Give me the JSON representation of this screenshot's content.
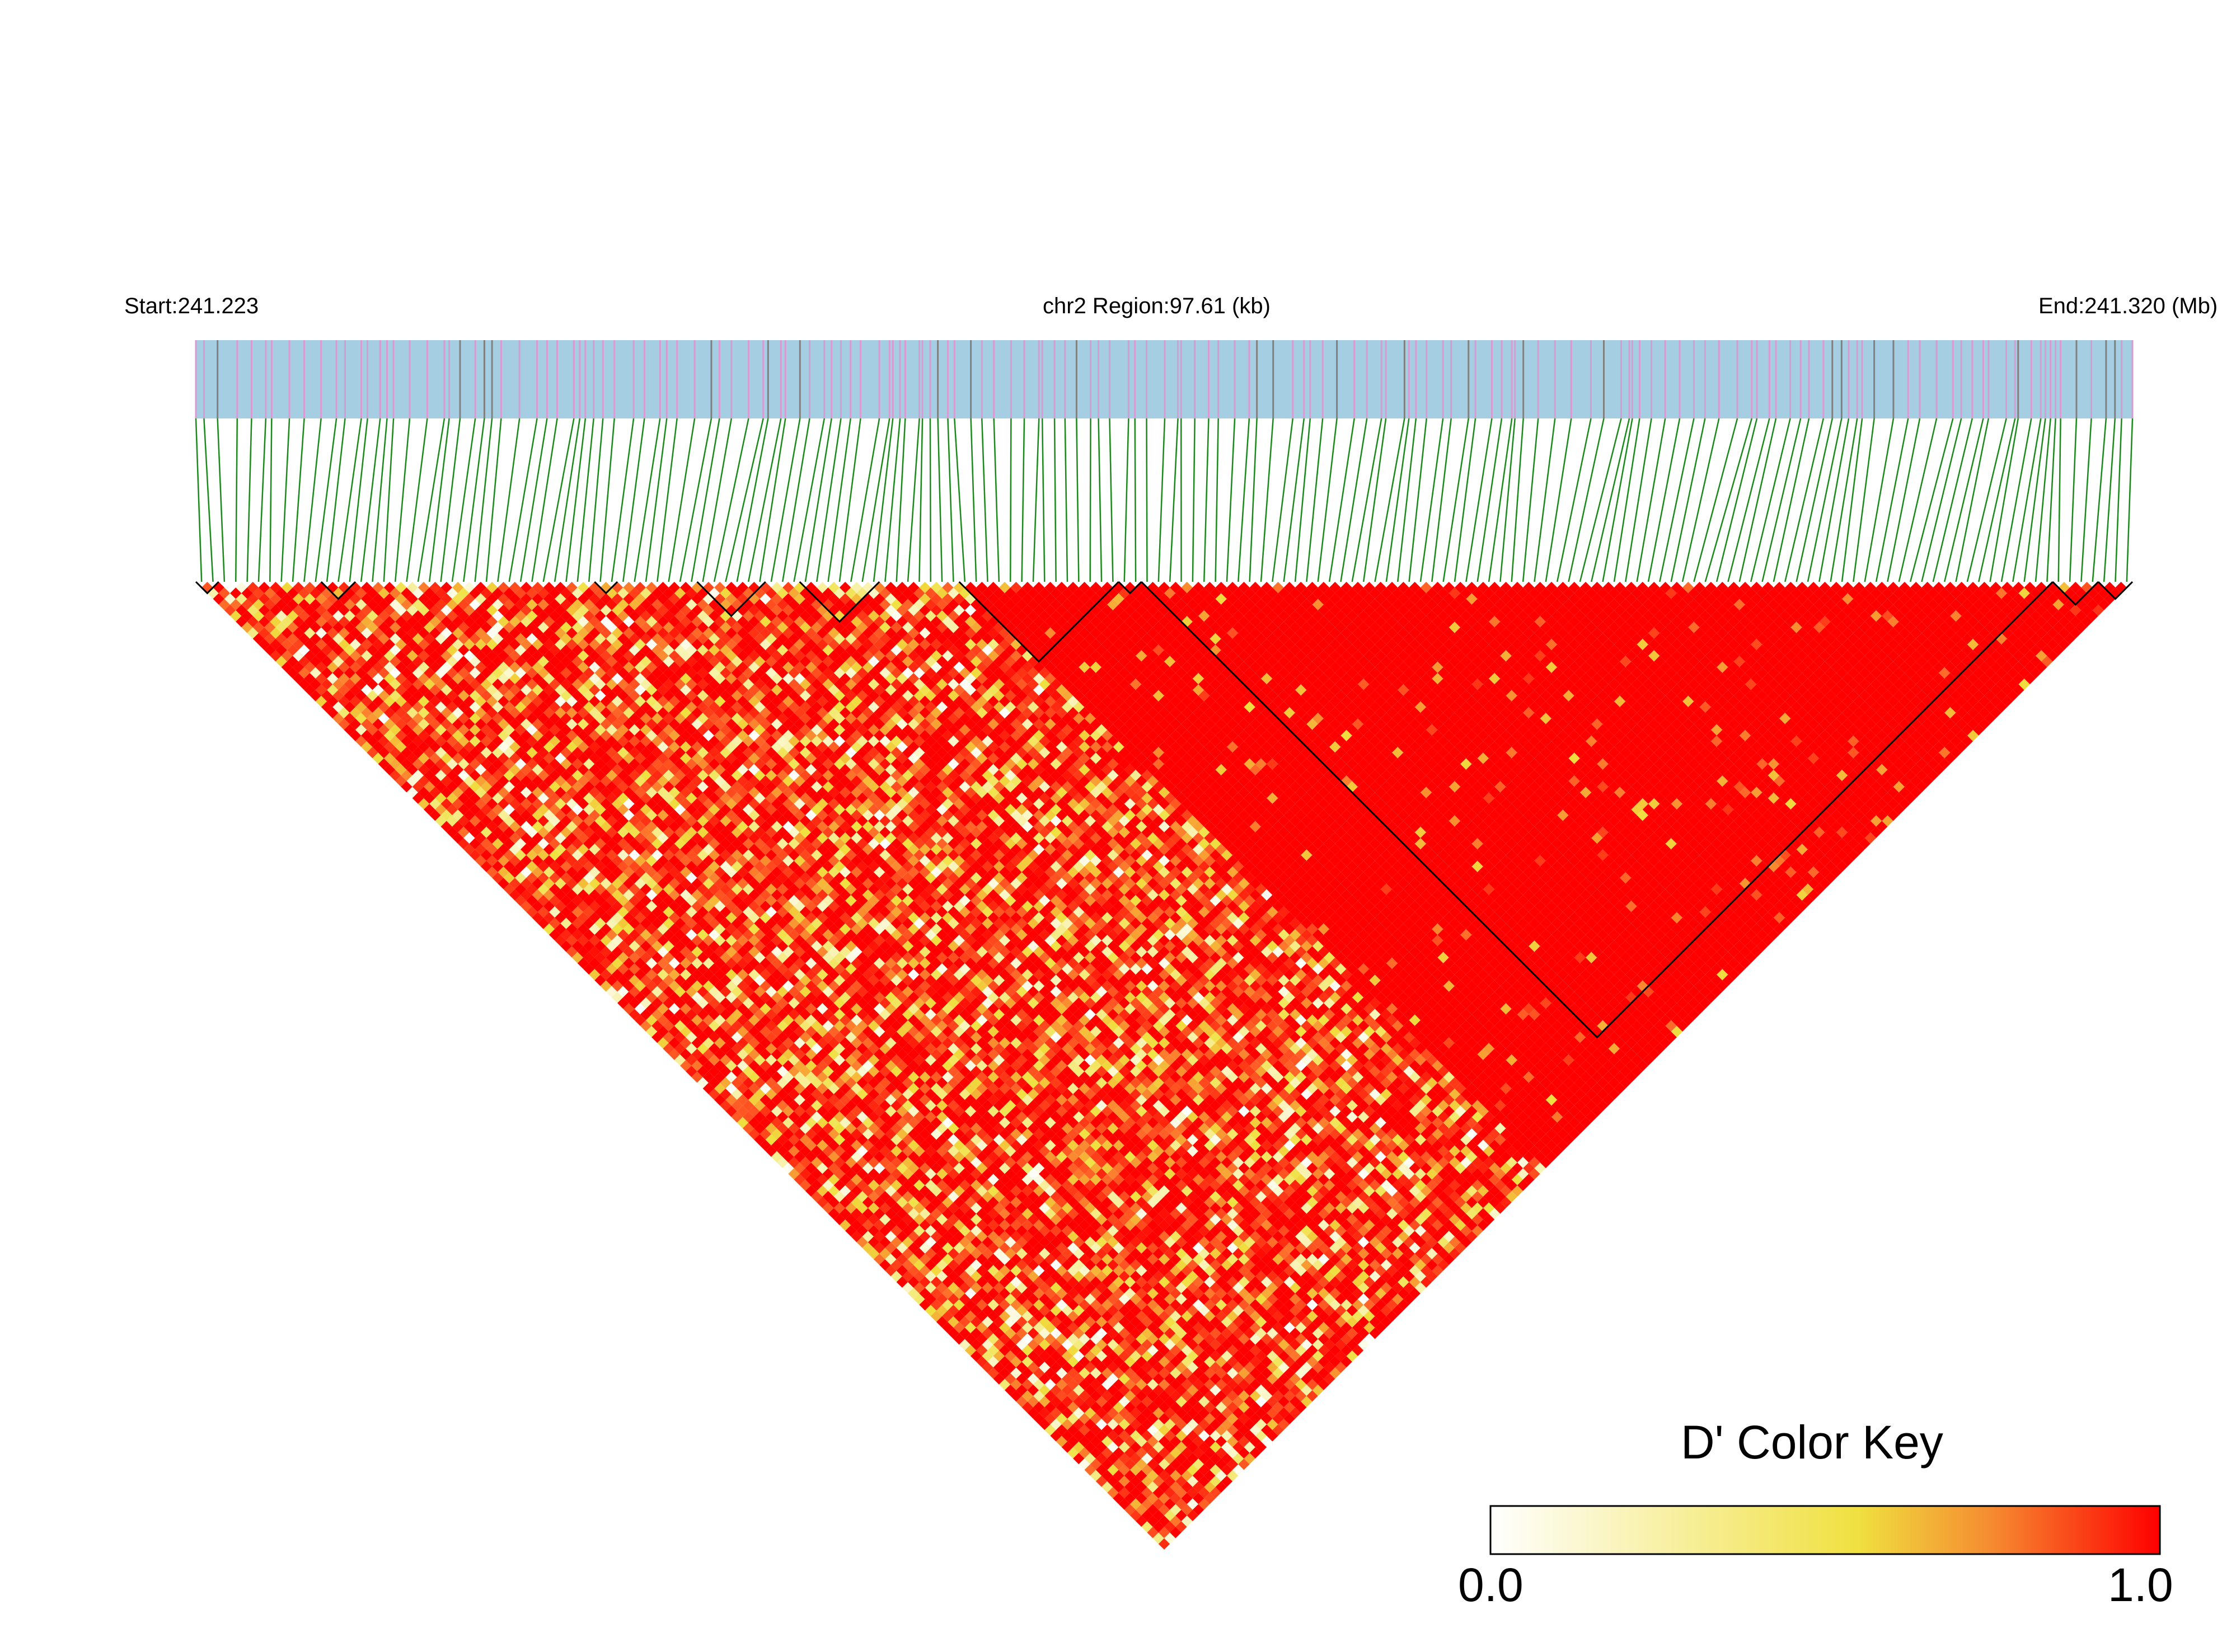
{
  "header": {
    "start_label": "Start:241.223",
    "region_label": "chr2 Region:97.61 (kb)",
    "end_label": "End:241.320 (Mb)"
  },
  "colors": {
    "gene_track": "#a6cee3",
    "snp_tick": "#d99ad3",
    "snp_tick_dark": "#808080",
    "connector": "#1a8a1a",
    "block_outline": "#000000",
    "high": "#ff0000",
    "mid": "#f0e040",
    "low": "#ffffff"
  },
  "chart_data": {
    "type": "heatmap",
    "subtype": "LD triangle (D')",
    "chromosome": "chr2",
    "start_mb": 241.223,
    "end_mb": 241.32,
    "region_kb": 97.61,
    "snp_count": 170,
    "haplotype_blocks": [
      {
        "first_snp": 0,
        "last_snp": 1
      },
      {
        "first_snp": 11,
        "last_snp": 13
      },
      {
        "first_snp": 35,
        "last_snp": 36
      },
      {
        "first_snp": 44,
        "last_snp": 49
      },
      {
        "first_snp": 53,
        "last_snp": 59
      },
      {
        "first_snp": 67,
        "last_snp": 80
      },
      {
        "first_snp": 81,
        "last_snp": 82
      },
      {
        "first_snp": 83,
        "last_snp": 162
      },
      {
        "first_snp": 163,
        "last_snp": 166
      },
      {
        "first_snp": 167,
        "last_snp": 169
      }
    ],
    "d_prime_pattern": [
      {
        "snps_from": 0,
        "snps_to": 115,
        "typical_dprime": 0.8,
        "note": "mixed, frequent low-D' cells"
      },
      {
        "snps_from": 67,
        "snps_to": 169,
        "typical_dprime": 1.0,
        "note": "solid high-D' region"
      }
    ],
    "legend": {
      "title": "D' Color Key",
      "min_label": "0.0",
      "max_label": "1.0",
      "colors": [
        "#ffffff",
        "#f0e040",
        "#ff0000"
      ]
    }
  }
}
